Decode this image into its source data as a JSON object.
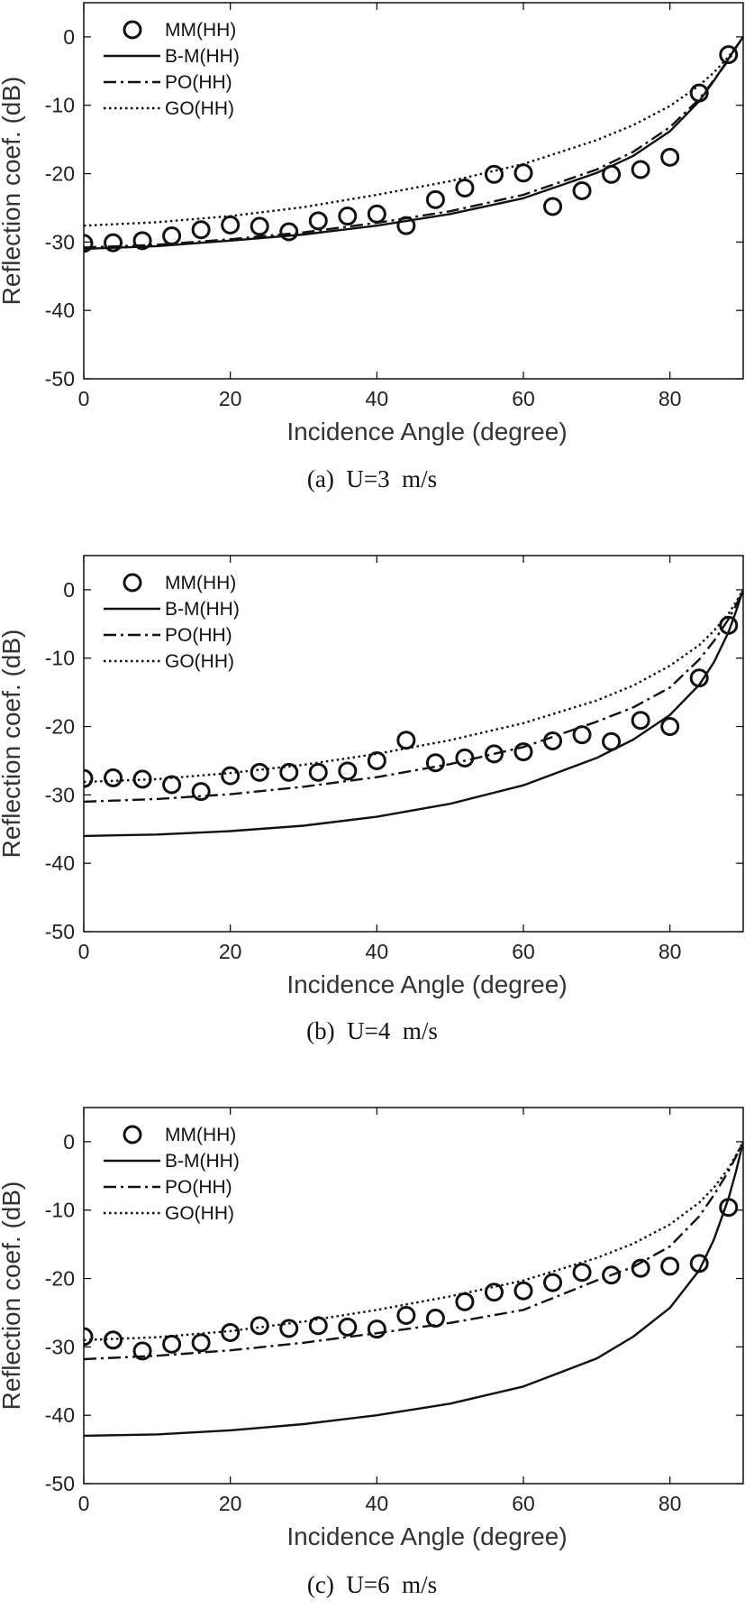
{
  "chart_data": [
    {
      "type": "line",
      "caption": "(a)  U=3  m/s",
      "xlabel": "Incidence Angle (degree)",
      "ylabel": "Reflection coef. (dB)",
      "xlim": [
        0,
        90
      ],
      "ylim": [
        -50,
        5
      ],
      "xticks": [
        0,
        20,
        40,
        60,
        80
      ],
      "yticks": [
        0,
        -10,
        -20,
        -30,
        -40,
        -50
      ],
      "legend": "top-left",
      "grid": false,
      "series": [
        {
          "name": "MM(HH)",
          "style": "circles",
          "x": [
            0,
            4,
            8,
            12,
            16,
            20,
            24,
            28,
            32,
            36,
            40,
            44,
            48,
            52,
            56,
            60,
            64,
            68,
            72,
            76,
            80,
            84,
            88
          ],
          "y": [
            -30.2,
            -30.1,
            -29.8,
            -29.1,
            -28.2,
            -27.5,
            -27.7,
            -28.5,
            -26.9,
            -26.2,
            -25.9,
            -27.6,
            -23.8,
            -22.1,
            -20.1,
            -19.9,
            -24.8,
            -22.5,
            -20.1,
            -19.4,
            -17.6,
            -8.2,
            -2.6
          ]
        },
        {
          "name": "B-M(HH)",
          "style": "solid",
          "x": [
            0,
            10,
            20,
            30,
            40,
            50,
            60,
            70,
            75,
            80,
            84,
            86,
            88,
            89,
            90
          ],
          "y": [
            -31,
            -30.6,
            -29.8,
            -28.9,
            -27.6,
            -25.9,
            -23.6,
            -19.9,
            -17.4,
            -13.8,
            -9.4,
            -6.4,
            -3.2,
            -1.5,
            0
          ]
        },
        {
          "name": "PO(HH)",
          "style": "dashdot",
          "x": [
            0,
            10,
            20,
            30,
            40,
            50,
            60,
            70,
            75,
            80,
            84,
            86,
            88,
            89,
            90
          ],
          "y": [
            -30.8,
            -30.4,
            -29.6,
            -28.6,
            -27.2,
            -25.5,
            -23.1,
            -19.4,
            -16.8,
            -13.2,
            -9.1,
            -6.3,
            -3.4,
            -1.6,
            0
          ]
        },
        {
          "name": "GO(HH)",
          "style": "dotted",
          "x": [
            0,
            10,
            20,
            30,
            40,
            50,
            60,
            70,
            75,
            80,
            84,
            86,
            88,
            89,
            90
          ],
          "y": [
            -27.6,
            -27.1,
            -26.2,
            -24.9,
            -23.1,
            -21.1,
            -18.6,
            -15.1,
            -12.9,
            -10.1,
            -7.1,
            -5.2,
            -2.9,
            -1.5,
            0
          ]
        }
      ]
    },
    {
      "type": "line",
      "caption": "(b)  U=4  m/s",
      "xlabel": "Incidence Angle (degree)",
      "ylabel": "Reflection coef. (dB)",
      "xlim": [
        0,
        90
      ],
      "ylim": [
        -50,
        5
      ],
      "xticks": [
        0,
        20,
        40,
        60,
        80
      ],
      "yticks": [
        0,
        -10,
        -20,
        -30,
        -40,
        -50
      ],
      "legend": "top-left",
      "grid": false,
      "series": [
        {
          "name": "MM(HH)",
          "style": "circles",
          "x": [
            0,
            4,
            8,
            12,
            16,
            20,
            24,
            28,
            32,
            36,
            40,
            44,
            48,
            52,
            56,
            60,
            64,
            68,
            72,
            76,
            80,
            84,
            88
          ],
          "y": [
            -27.6,
            -27.5,
            -27.7,
            -28.5,
            -29.5,
            -27.2,
            -26.7,
            -26.7,
            -26.7,
            -26.5,
            -25.0,
            -22.0,
            -25.3,
            -24.6,
            -24.0,
            -23.7,
            -22.1,
            -21.2,
            -22.2,
            -19.1,
            -20.0,
            -12.9,
            -5.2
          ]
        },
        {
          "name": "B-M(HH)",
          "style": "solid",
          "x": [
            0,
            10,
            20,
            30,
            40,
            50,
            60,
            70,
            75,
            80,
            84,
            86,
            88,
            89,
            90
          ],
          "y": [
            -36,
            -35.8,
            -35.3,
            -34.5,
            -33.2,
            -31.3,
            -28.6,
            -24.6,
            -21.9,
            -18.3,
            -13.9,
            -10.6,
            -6.2,
            -3.2,
            0
          ]
        },
        {
          "name": "PO(HH)",
          "style": "dashdot",
          "x": [
            0,
            10,
            20,
            30,
            40,
            50,
            60,
            70,
            75,
            80,
            84,
            86,
            88,
            89,
            90
          ],
          "y": [
            -31.0,
            -30.6,
            -29.9,
            -28.8,
            -27.4,
            -25.5,
            -23.0,
            -19.3,
            -17.2,
            -14.3,
            -10.2,
            -7.5,
            -4.3,
            -2.3,
            0
          ]
        },
        {
          "name": "GO(HH)",
          "style": "dotted",
          "x": [
            0,
            10,
            20,
            30,
            40,
            50,
            60,
            70,
            75,
            80,
            84,
            86,
            88,
            89,
            90
          ],
          "y": [
            -28.1,
            -27.7,
            -26.8,
            -25.6,
            -24.0,
            -22.0,
            -19.5,
            -16.2,
            -14.0,
            -11.1,
            -8.1,
            -6.0,
            -3.5,
            -1.8,
            0
          ]
        }
      ]
    },
    {
      "type": "line",
      "caption": "(c)  U=6  m/s",
      "xlabel": "Incidence Angle (degree)",
      "ylabel": "Reflection coef. (dB)",
      "xlim": [
        0,
        90
      ],
      "ylim": [
        -50,
        5
      ],
      "xticks": [
        0,
        20,
        40,
        60,
        80
      ],
      "yticks": [
        0,
        -10,
        -20,
        -30,
        -40,
        -50
      ],
      "legend": "top-left",
      "grid": false,
      "series": [
        {
          "name": "MM(HH)",
          "style": "circles",
          "x": [
            0,
            4,
            8,
            12,
            16,
            20,
            24,
            28,
            32,
            36,
            40,
            44,
            48,
            52,
            56,
            60,
            64,
            68,
            72,
            76,
            80,
            84,
            88
          ],
          "y": [
            -28.5,
            -29.0,
            -30.6,
            -29.6,
            -29.4,
            -27.9,
            -26.9,
            -27.3,
            -26.9,
            -27.1,
            -27.4,
            -25.4,
            -25.8,
            -23.4,
            -22.0,
            -21.8,
            -20.6,
            -19.1,
            -19.5,
            -18.5,
            -18.2,
            -17.8,
            -9.6
          ]
        },
        {
          "name": "B-M(HH)",
          "style": "solid",
          "x": [
            0,
            10,
            20,
            30,
            40,
            50,
            60,
            70,
            75,
            80,
            84,
            86,
            88,
            89,
            90
          ],
          "y": [
            -43,
            -42.8,
            -42.2,
            -41.3,
            -40.0,
            -38.3,
            -35.8,
            -31.7,
            -28.5,
            -24.3,
            -18.8,
            -14.3,
            -8.3,
            -4.4,
            0
          ]
        },
        {
          "name": "PO(HH)",
          "style": "dashdot",
          "x": [
            0,
            10,
            20,
            30,
            40,
            50,
            60,
            70,
            75,
            80,
            84,
            86,
            88,
            89,
            90
          ],
          "y": [
            -31.8,
            -31.3,
            -30.5,
            -29.4,
            -28.0,
            -26.5,
            -24.6,
            -20.3,
            -18.3,
            -15.3,
            -10.9,
            -7.8,
            -4.3,
            -2.2,
            0
          ]
        },
        {
          "name": "GO(HH)",
          "style": "dotted",
          "x": [
            0,
            10,
            20,
            30,
            40,
            50,
            60,
            70,
            75,
            80,
            84,
            86,
            88,
            89,
            90
          ],
          "y": [
            -29.0,
            -28.6,
            -27.7,
            -26.3,
            -24.6,
            -22.6,
            -20.3,
            -17.0,
            -14.9,
            -12.1,
            -8.9,
            -6.7,
            -3.9,
            -2.0,
            0
          ]
        }
      ]
    }
  ]
}
